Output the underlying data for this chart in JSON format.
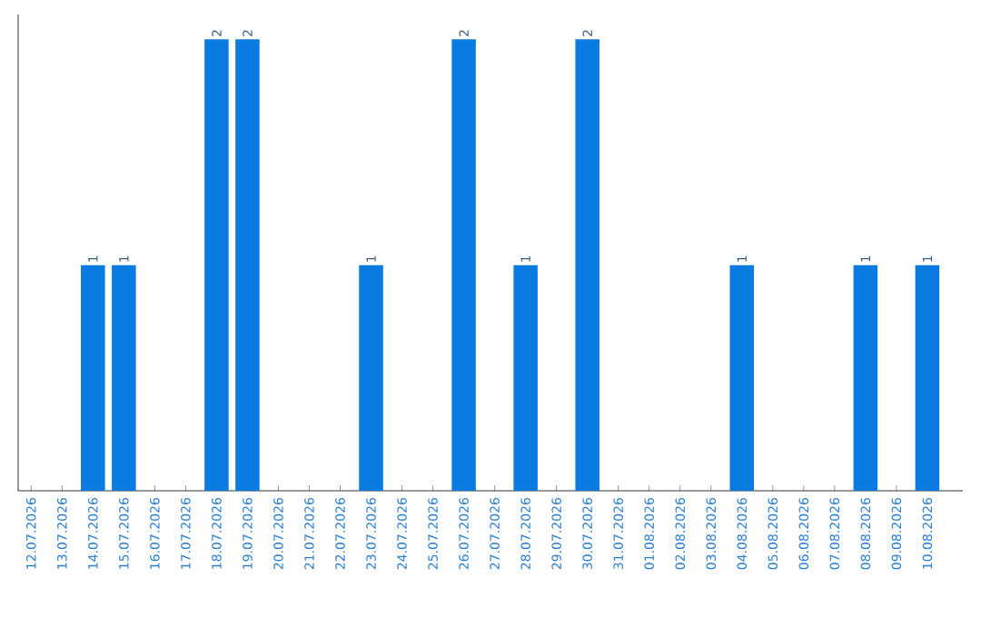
{
  "chart_data": {
    "type": "bar",
    "categories": [
      "12.07.2026",
      "13.07.2026",
      "14.07.2026",
      "15.07.2026",
      "16.07.2026",
      "17.07.2026",
      "18.07.2026",
      "19.07.2026",
      "20.07.2026",
      "21.07.2026",
      "22.07.2026",
      "23.07.2026",
      "24.07.2026",
      "25.07.2026",
      "26.07.2026",
      "27.07.2026",
      "28.07.2026",
      "29.07.2026",
      "30.07.2026",
      "31.07.2026",
      "01.08.2026",
      "02.08.2026",
      "03.08.2026",
      "04.08.2026",
      "05.08.2026",
      "06.08.2026",
      "07.08.2026",
      "08.08.2026",
      "09.08.2026",
      "10.08.2026"
    ],
    "values": [
      0,
      0,
      1,
      1,
      0,
      0,
      2,
      2,
      0,
      0,
      0,
      1,
      0,
      0,
      2,
      0,
      1,
      0,
      2,
      0,
      0,
      0,
      0,
      1,
      0,
      0,
      0,
      1,
      0,
      1
    ],
    "value_labels": [
      null,
      null,
      "1",
      "1",
      null,
      null,
      "2",
      "2",
      null,
      null,
      null,
      "1",
      null,
      null,
      "2",
      null,
      "1",
      null,
      "2",
      null,
      null,
      null,
      null,
      "1",
      null,
      null,
      null,
      "1",
      null,
      "1"
    ],
    "color": "#0a7be0"
  }
}
